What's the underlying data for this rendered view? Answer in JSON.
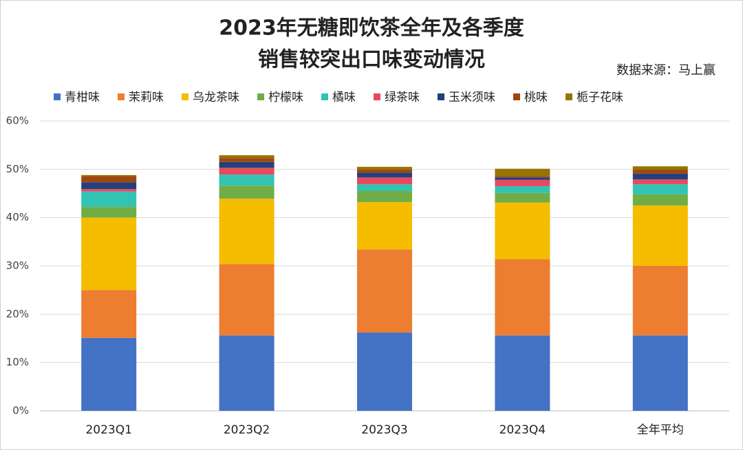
{
  "chart_data": {
    "type": "stacked_bar",
    "title": [
      "2023年无糖即饮茶全年及各季度",
      "销售较突出口味变动情况"
    ],
    "source": "数据来源：马上赢",
    "categories": [
      "2023Q1",
      "2023Q2",
      "2023Q3",
      "2023Q4",
      "全年平均"
    ],
    "series": [
      {
        "name": "青柑味",
        "color": "#4472c4",
        "values": [
          15.1,
          15.6,
          16.2,
          15.6,
          15.6
        ]
      },
      {
        "name": "茉莉味",
        "color": "#ed7d31",
        "values": [
          9.9,
          14.8,
          17.2,
          15.8,
          14.4
        ]
      },
      {
        "name": "乌龙茶味",
        "color": "#f5bc00",
        "values": [
          15.0,
          13.5,
          9.8,
          11.7,
          12.5
        ]
      },
      {
        "name": "柠檬味",
        "color": "#70ad47",
        "values": [
          2.2,
          2.7,
          2.3,
          2.0,
          2.3
        ]
      },
      {
        "name": "橘味",
        "color": "#33c3b3",
        "values": [
          3.2,
          2.3,
          1.4,
          1.4,
          2.1
        ]
      },
      {
        "name": "绿茶味",
        "color": "#e8495e",
        "values": [
          0.5,
          1.4,
          1.4,
          1.3,
          1.0
        ]
      },
      {
        "name": "玉米须味",
        "color": "#23407d",
        "values": [
          1.4,
          1.2,
          1.0,
          0.5,
          1.2
        ]
      },
      {
        "name": "桃味",
        "color": "#9e480e",
        "values": [
          1.3,
          0.8,
          0.6,
          0.3,
          0.8
        ]
      },
      {
        "name": "栀子花味",
        "color": "#997300",
        "values": [
          0.2,
          0.6,
          0.6,
          1.5,
          0.7
        ]
      }
    ],
    "ylim": [
      0,
      60
    ],
    "yticks": [
      {
        "value": 0,
        "label": "0%"
      },
      {
        "value": 10,
        "label": "10%"
      },
      {
        "value": 20,
        "label": "20%"
      },
      {
        "value": 30,
        "label": "30%"
      },
      {
        "value": 40,
        "label": "40%"
      },
      {
        "value": 50,
        "label": "50%"
      },
      {
        "value": 60,
        "label": "60%"
      }
    ],
    "grid": true
  }
}
